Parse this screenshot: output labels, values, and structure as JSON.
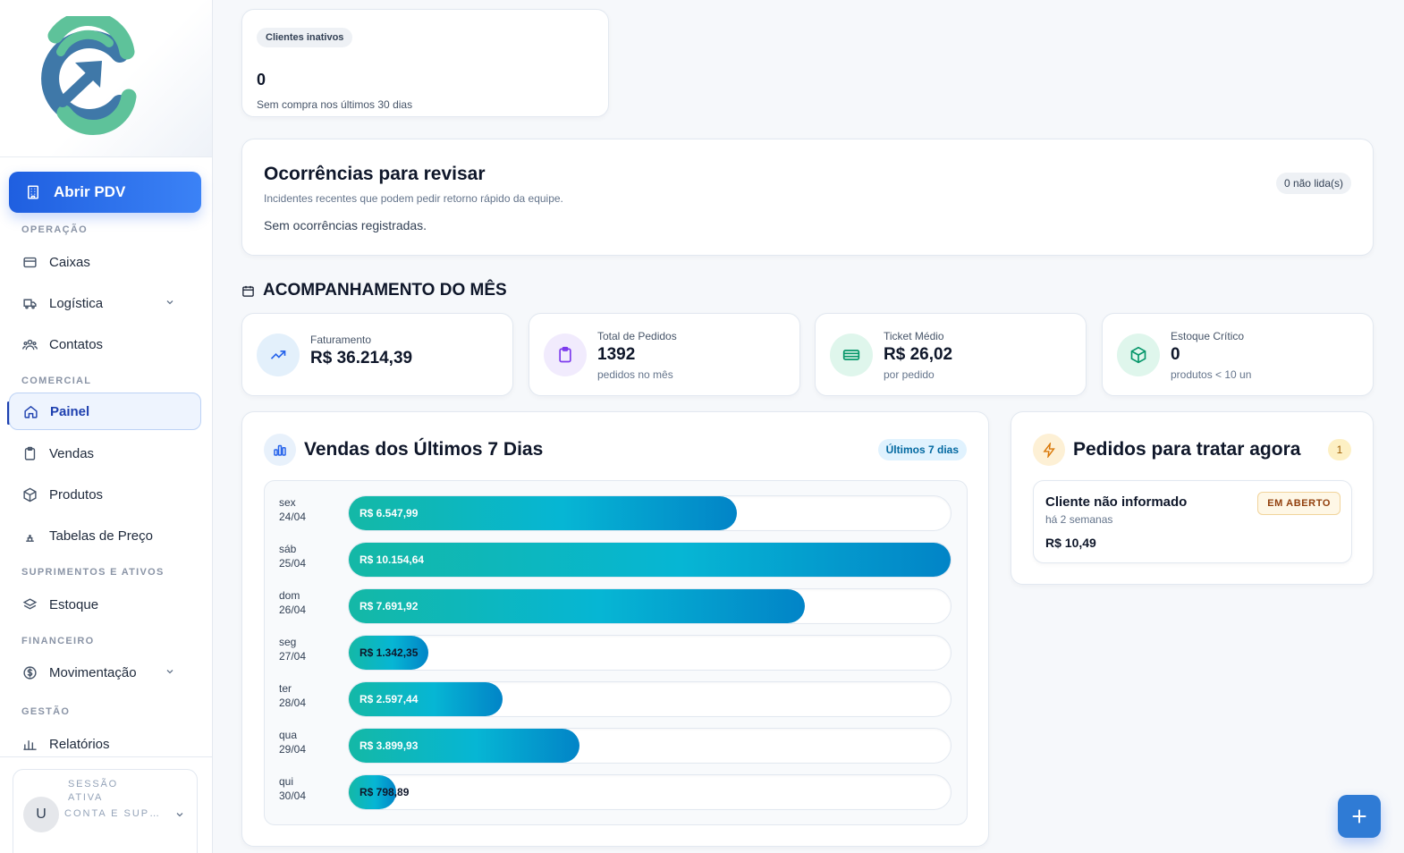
{
  "sidebar": {
    "pdv_button": "Abrir PDV",
    "sections": {
      "operacao": "OPERAÇÃO",
      "comercial": "COMERCIAL",
      "suprimentos": "SUPRIMENTOS E ATIVOS",
      "financeiro": "FINANCEIRO",
      "gestao": "GESTÃO"
    },
    "items": {
      "caixas": "Caixas",
      "logistica": "Logística",
      "contatos": "Contatos",
      "painel": "Painel",
      "vendas": "Vendas",
      "produtos": "Produtos",
      "tabelas": "Tabelas de Preço",
      "estoque": "Estoque",
      "movimentacao": "Movimentação",
      "relatorios": "Relatórios"
    },
    "session": {
      "avatar_letter": "U",
      "label": "SESSÃO ATIVA",
      "account": "CONTA E SUPORTE"
    }
  },
  "inactive_clients": {
    "label": "Clientes inativos",
    "value": "0",
    "sub": "Sem compra nos últimos 30 dias"
  },
  "occurrences": {
    "title": "Ocorrências para revisar",
    "subtitle": "Incidentes recentes que podem pedir retorno rápido da equipe.",
    "empty": "Sem ocorrências registradas.",
    "badge": "0 não lida(s)"
  },
  "month": {
    "title": "ACOMPANHAMENTO DO MÊS",
    "kpis": {
      "revenue": {
        "label": "Faturamento",
        "value": "R$ 36.214,39"
      },
      "orders": {
        "label": "Total de Pedidos",
        "value": "1392",
        "sub": "pedidos no mês"
      },
      "ticket": {
        "label": "Ticket Médio",
        "value": "R$ 26,02",
        "sub": "por pedido"
      },
      "stock": {
        "label": "Estoque Crítico",
        "value": "0",
        "sub": "produtos < 10 un"
      }
    }
  },
  "sales": {
    "title": "Vendas dos Últimos 7 Dias",
    "badge": "Últimos 7 dias"
  },
  "chart_data": {
    "type": "bar",
    "title": "Vendas dos Últimos 7 Dias",
    "orientation": "horizontal",
    "max_value": 10154.64,
    "bars": [
      {
        "weekday": "sex",
        "date": "24/04",
        "value": 6547.99,
        "label": "R$ 6.547,99"
      },
      {
        "weekday": "sáb",
        "date": "25/04",
        "value": 10154.64,
        "label": "R$ 10.154,64"
      },
      {
        "weekday": "dom",
        "date": "26/04",
        "value": 7691.92,
        "label": "R$ 7.691,92"
      },
      {
        "weekday": "seg",
        "date": "27/04",
        "value": 1342.35,
        "label": "R$ 1.342,35"
      },
      {
        "weekday": "ter",
        "date": "28/04",
        "value": 2597.44,
        "label": "R$ 2.597,44"
      },
      {
        "weekday": "qua",
        "date": "29/04",
        "value": 3899.93,
        "label": "R$ 3.899,93"
      },
      {
        "weekday": "qui",
        "date": "30/04",
        "value": 798.89,
        "label": "R$ 798,89"
      }
    ]
  },
  "orders": {
    "title": "Pedidos para tratar agora",
    "count": "1",
    "items": [
      {
        "client": "Cliente não informado",
        "time": "há 2 semanas",
        "value": "R$ 10,49",
        "status": "EM ABERTO"
      }
    ]
  }
}
